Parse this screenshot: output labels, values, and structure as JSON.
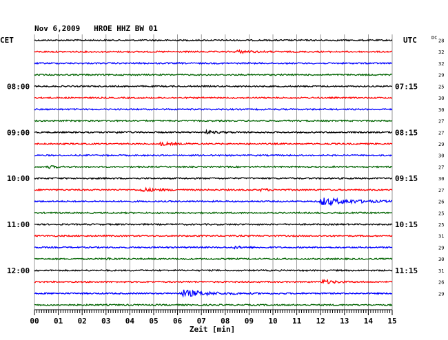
{
  "header": {
    "title": "Nov 6,2009   HROE HHZ BW 01",
    "left_zone": "CET",
    "right_zone": "UTC",
    "dc_label": "DC"
  },
  "colors": {
    "trace_cycle": [
      "#000000",
      "#ff0000",
      "#0000ff",
      "#006400"
    ],
    "grid": "#808080"
  },
  "chart_data": {
    "type": "line",
    "title": "Nov 6,2009   HROE HHZ BW 01",
    "xlabel": "Zeit [min]",
    "ylabel": "",
    "xlim": [
      0,
      15
    ],
    "x_ticks": [
      "00",
      "01",
      "02",
      "03",
      "04",
      "05",
      "06",
      "07",
      "08",
      "09",
      "10",
      "11",
      "12",
      "13",
      "14",
      "15"
    ],
    "row_minutes": 15,
    "rows": 24,
    "left_time_labels": [
      {
        "row": 4,
        "text": "08:00"
      },
      {
        "row": 8,
        "text": "09:00"
      },
      {
        "row": 12,
        "text": "10:00"
      },
      {
        "row": 16,
        "text": "11:00"
      },
      {
        "row": 20,
        "text": "12:00"
      }
    ],
    "right_time_labels": [
      {
        "row": 4,
        "text": "07:15"
      },
      {
        "row": 8,
        "text": "08:15"
      },
      {
        "row": 12,
        "text": "09:15"
      },
      {
        "row": 16,
        "text": "10:15"
      },
      {
        "row": 20,
        "text": "11:15"
      }
    ],
    "dc_offsets": [
      "28",
      "32",
      "32",
      "29",
      "25",
      "30",
      "30",
      "27",
      "27",
      "29",
      "30",
      "27",
      "30",
      "27",
      "26",
      "25",
      "25",
      "31",
      "29",
      "30",
      "31",
      "26",
      "29"
    ],
    "events": [
      {
        "row": 1,
        "minute": 8.5,
        "amp": 1.8,
        "width": 0.6
      },
      {
        "row": 8,
        "minute": 7.2,
        "amp": 1.8,
        "width": 0.5
      },
      {
        "row": 8,
        "minute": 3.3,
        "amp": 1.3,
        "width": 0.3
      },
      {
        "row": 9,
        "minute": 5.3,
        "amp": 2.0,
        "width": 0.5
      },
      {
        "row": 11,
        "minute": 0.6,
        "amp": 1.4,
        "width": 0.4
      },
      {
        "row": 13,
        "minute": 4.5,
        "amp": 2.6,
        "width": 0.6
      },
      {
        "row": 13,
        "minute": 9.5,
        "amp": 1.3,
        "width": 0.4
      },
      {
        "row": 14,
        "minute": 12.0,
        "amp": 5.5,
        "width": 1.2
      },
      {
        "row": 18,
        "minute": 8.4,
        "amp": 1.2,
        "width": 0.4
      },
      {
        "row": 19,
        "minute": 3.0,
        "amp": 1.2,
        "width": 0.3
      },
      {
        "row": 21,
        "minute": 12.1,
        "amp": 2.8,
        "width": 0.5
      },
      {
        "row": 22,
        "minute": 6.2,
        "amp": 5.0,
        "width": 1.0
      }
    ]
  }
}
